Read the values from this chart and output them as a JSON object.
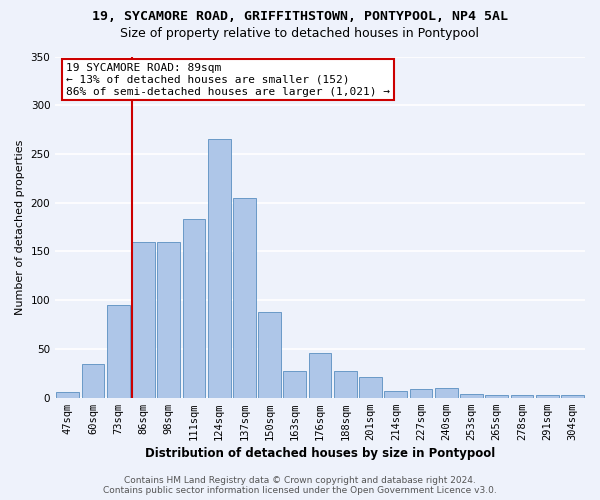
{
  "title1": "19, SYCAMORE ROAD, GRIFFITHSTOWN, PONTYPOOL, NP4 5AL",
  "title2": "Size of property relative to detached houses in Pontypool",
  "xlabel": "Distribution of detached houses by size in Pontypool",
  "ylabel": "Number of detached properties",
  "categories": [
    "47sqm",
    "60sqm",
    "73sqm",
    "86sqm",
    "98sqm",
    "111sqm",
    "124sqm",
    "137sqm",
    "150sqm",
    "163sqm",
    "176sqm",
    "188sqm",
    "201sqm",
    "214sqm",
    "227sqm",
    "240sqm",
    "253sqm",
    "265sqm",
    "278sqm",
    "291sqm",
    "304sqm"
  ],
  "values": [
    6,
    35,
    95,
    160,
    160,
    183,
    265,
    205,
    88,
    27,
    46,
    27,
    21,
    7,
    9,
    10,
    4,
    3,
    3,
    3,
    3
  ],
  "bar_color": "#aec6e8",
  "bar_edge_color": "#5a8fc0",
  "background_color": "#eef2fb",
  "grid_color": "#ffffff",
  "vline_color": "#cc0000",
  "annotation_text": "19 SYCAMORE ROAD: 89sqm\n← 13% of detached houses are smaller (152)\n86% of semi-detached houses are larger (1,021) →",
  "annotation_box_color": "#ffffff",
  "annotation_box_edge": "#cc0000",
  "footer1": "Contains HM Land Registry data © Crown copyright and database right 2024.",
  "footer2": "Contains public sector information licensed under the Open Government Licence v3.0.",
  "ylim": [
    0,
    350
  ],
  "yticks": [
    0,
    50,
    100,
    150,
    200,
    250,
    300,
    350
  ],
  "title1_fontsize": 9.5,
  "title2_fontsize": 9,
  "xlabel_fontsize": 8.5,
  "ylabel_fontsize": 8,
  "tick_fontsize": 7.5,
  "annotation_fontsize": 8
}
